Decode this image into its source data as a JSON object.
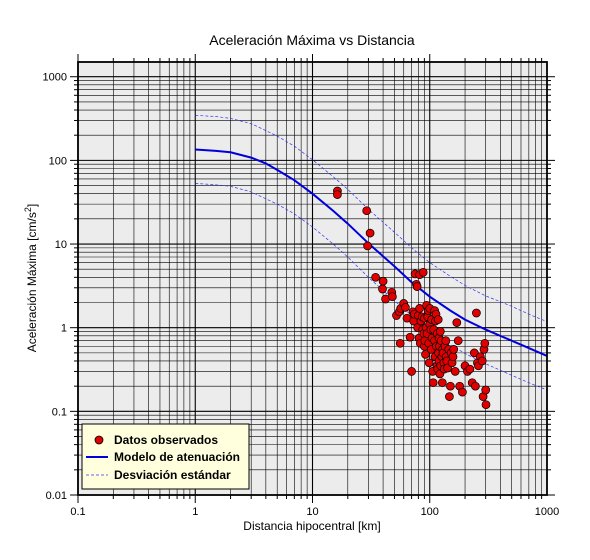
{
  "chart_data": {
    "type": "scatter",
    "title": "Aceleración Máxima vs Distancia",
    "xlabel": "Distancia hipocentral [km]",
    "ylabel": "Aceleración Máxima [cm/s",
    "ylabel_superscript": "2",
    "ylabel_suffix": "]",
    "x_scale": "log",
    "y_scale": "log",
    "xlim": [
      0.1,
      1000
    ],
    "ylim": [
      0.01,
      1500
    ],
    "grid": true,
    "x_ticks": [
      {
        "value": 0.1,
        "label": "0.1"
      },
      {
        "value": 1,
        "label": "1"
      },
      {
        "value": 10,
        "label": "10"
      },
      {
        "value": 100,
        "label": "100"
      },
      {
        "value": 1000,
        "label": "1000"
      }
    ],
    "y_ticks": [
      {
        "value": 0.01,
        "label": "0.01"
      },
      {
        "value": 0.1,
        "label": "0.1"
      },
      {
        "value": 1,
        "label": "1"
      },
      {
        "value": 10,
        "label": "10"
      },
      {
        "value": 100,
        "label": "100"
      },
      {
        "value": 1000,
        "label": "1000"
      }
    ],
    "legend_position": "bottom-left",
    "legend": [
      {
        "label": "Datos observados",
        "kind": "marker"
      },
      {
        "label": "Modelo de atenuación",
        "kind": "solid"
      },
      {
        "label": "Desviación estándar",
        "kind": "dashed"
      }
    ],
    "colors": {
      "points": "#e00000",
      "model": "#0000dd",
      "deviation": "#3333ee",
      "plot_bg": "#ececec",
      "legend_bg": "#ffffdd"
    },
    "series": [
      {
        "name": "Datos observados",
        "kind": "scatter",
        "x": [
          16.3,
          16.3,
          29,
          31,
          29.5,
          34.5,
          40,
          39.5,
          42,
          47.5,
          48,
          52,
          55,
          56,
          56.5,
          60,
          62,
          64,
          68,
          70,
          72,
          73,
          74,
          75,
          77,
          78,
          79,
          80,
          81,
          82,
          82,
          83,
          84,
          86,
          87,
          88,
          89,
          90,
          90,
          91,
          92,
          93,
          94,
          95,
          96,
          97,
          98,
          99,
          100,
          100,
          102,
          103,
          104,
          105,
          106,
          107,
          108,
          110,
          110,
          111,
          112,
          113,
          114,
          115,
          116,
          117,
          118,
          119,
          120,
          120,
          121,
          122,
          123,
          124,
          125,
          127,
          128,
          129,
          130,
          132,
          133,
          135,
          137,
          138,
          140,
          142,
          145,
          147,
          150,
          152,
          155,
          158,
          160,
          165,
          170,
          175,
          180,
          190,
          200,
          210,
          220,
          230,
          240,
          245,
          250,
          255,
          260,
          270,
          280,
          285,
          290,
          295,
          300,
          302
        ],
        "y": [
          43,
          39,
          25,
          13.5,
          9.5,
          4,
          3.6,
          2.9,
          2.2,
          2.65,
          2.35,
          1.4,
          1.55,
          0.65,
          1.7,
          1.95,
          1.75,
          1.3,
          0.77,
          0.3,
          1.55,
          1.2,
          1.45,
          4.4,
          3.3,
          3.1,
          1.0,
          1.4,
          0.75,
          1.7,
          4.3,
          0.65,
          1.2,
          1.35,
          0.95,
          4.6,
          0.85,
          0.6,
          1.3,
          0.7,
          0.48,
          1.0,
          1.85,
          0.85,
          1.35,
          1.6,
          0.65,
          0.38,
          1.1,
          1.7,
          0.95,
          0.55,
          1.25,
          0.75,
          0.3,
          0.22,
          0.95,
          1.6,
          0.7,
          0.45,
          1.2,
          1.45,
          0.6,
          0.35,
          0.85,
          0.32,
          1.25,
          0.5,
          0.75,
          0.4,
          0.6,
          0.28,
          0.9,
          0.35,
          0.7,
          0.45,
          0.22,
          0.55,
          0.5,
          0.38,
          0.32,
          0.6,
          0.7,
          0.45,
          0.4,
          0.33,
          0.55,
          0.15,
          0.2,
          0.5,
          0.38,
          0.45,
          0.55,
          0.3,
          1.15,
          0.7,
          0.2,
          0.17,
          0.35,
          0.3,
          0.32,
          0.22,
          0.5,
          0.2,
          1.5,
          0.38,
          0.35,
          0.45,
          0.4,
          0.15,
          0.55,
          0.65,
          0.18,
          0.12
        ]
      },
      {
        "name": "Modelo de atenuación",
        "kind": "line",
        "x": [
          1,
          1.5,
          2,
          3,
          4,
          5,
          7,
          10,
          15,
          20,
          30,
          50,
          70,
          100,
          150,
          200,
          300,
          500,
          700,
          1000
        ],
        "y": [
          135,
          130,
          125,
          108,
          92,
          77,
          58,
          40,
          25,
          17.5,
          10.2,
          5.4,
          3.5,
          2.35,
          1.6,
          1.25,
          0.95,
          0.7,
          0.57,
          0.46
        ]
      },
      {
        "name": "Desviación estándar",
        "kind": "dashed",
        "x": [
          1,
          1.5,
          2,
          3,
          5,
          7,
          10,
          15,
          20,
          30,
          50,
          70,
          100,
          150,
          200,
          300,
          500,
          700,
          1000
        ],
        "y": [
          345,
          335,
          318,
          275,
          195,
          148,
          102,
          64,
          45,
          26,
          13.8,
          9,
          6,
          4.1,
          3.2,
          2.4,
          1.8,
          1.45,
          1.18
        ]
      },
      {
        "name": "Desviación estándar",
        "kind": "dashed",
        "x": [
          1,
          1.5,
          2,
          3,
          5,
          7,
          10,
          15,
          20,
          30,
          50,
          70,
          100,
          150,
          200,
          300,
          500,
          700,
          1000
        ],
        "y": [
          53,
          51,
          49,
          42,
          30,
          23,
          16,
          10,
          7,
          4,
          2.1,
          1.4,
          0.92,
          0.63,
          0.49,
          0.37,
          0.27,
          0.22,
          0.18
        ]
      }
    ]
  }
}
